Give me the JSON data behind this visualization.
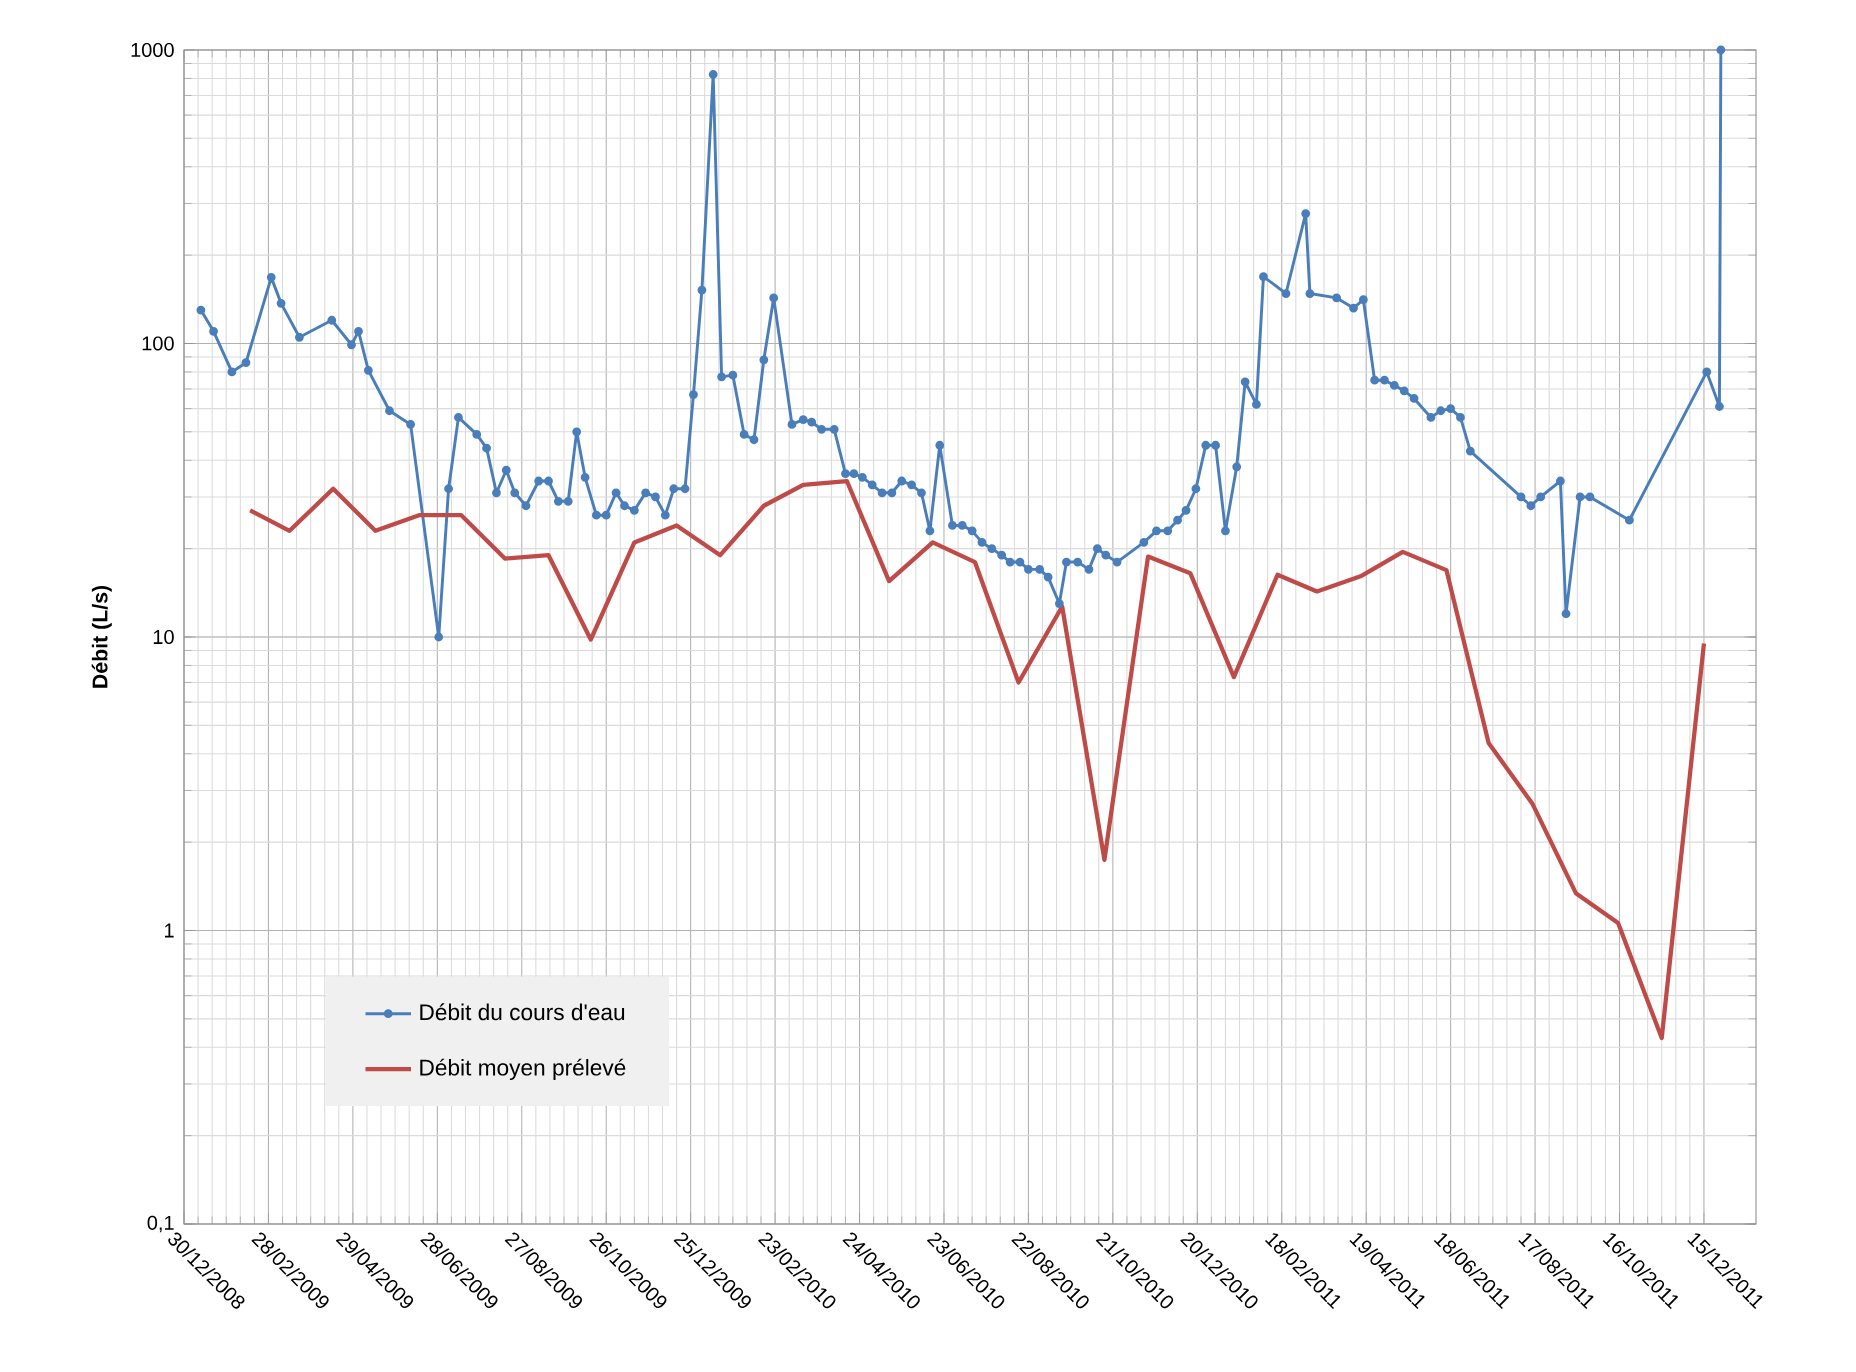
{
  "chart_data": {
    "type": "line",
    "ylabel": "Débit (L/s)",
    "log": true,
    "grid": true,
    "legend": "bottom left",
    "xlim": [
      "2008-12-30",
      "2012-01-21"
    ],
    "xticks": [
      {
        "value": "2008-12-30",
        "label": "30/12/2008"
      },
      {
        "value": "2009-02-28",
        "label": "28/02/2009"
      },
      {
        "value": "2009-04-29",
        "label": "29/04/2009"
      },
      {
        "value": "2009-06-28",
        "label": "28/06/2009"
      },
      {
        "value": "2009-08-27",
        "label": "27/08/2009"
      },
      {
        "value": "2009-10-26",
        "label": "26/10/2009"
      },
      {
        "value": "2009-12-25",
        "label": "25/12/2009"
      },
      {
        "value": "2010-02-23",
        "label": "23/02/2010"
      },
      {
        "value": "2010-04-24",
        "label": "24/04/2010"
      },
      {
        "value": "2010-06-23",
        "label": "23/06/2010"
      },
      {
        "value": "2010-08-22",
        "label": "22/08/2010"
      },
      {
        "value": "2010-10-21",
        "label": "21/10/2010"
      },
      {
        "value": "2010-12-20",
        "label": "20/12/2010"
      },
      {
        "value": "2011-02-18",
        "label": "18/02/2011"
      },
      {
        "value": "2011-04-19",
        "label": "19/04/2011"
      },
      {
        "value": "2011-06-18",
        "label": "18/06/2011"
      },
      {
        "value": "2011-08-17",
        "label": "17/08/2011"
      },
      {
        "value": "2011-10-16",
        "label": "16/10/2011"
      },
      {
        "value": "2011-12-15",
        "label": "15/12/2011"
      }
    ],
    "ylim": [
      0.1,
      1000
    ],
    "yticks": [
      {
        "value": 0.1,
        "label": "0,1"
      },
      1,
      10,
      100,
      1000
    ],
    "series": [
      {
        "name": "Débit du cours d'eau",
        "color": "#4a7ebb",
        "marker": "circle",
        "x": [
          "2009-01-11",
          "2009-01-20",
          "2009-02-02",
          "2009-02-12",
          "2009-03-02",
          "2009-03-09",
          "2009-03-22",
          "2009-04-14",
          "2009-04-28",
          "2009-05-03",
          "2009-05-10",
          "2009-05-25",
          "2009-06-09",
          "2009-06-29",
          "2009-07-06",
          "2009-07-13",
          "2009-07-26",
          "2009-08-02",
          "2009-08-09",
          "2009-08-16",
          "2009-08-22",
          "2009-08-30",
          "2009-09-08",
          "2009-09-15",
          "2009-09-22",
          "2009-09-29",
          "2009-10-05",
          "2009-10-11",
          "2009-10-19",
          "2009-10-26",
          "2009-11-02",
          "2009-11-08",
          "2009-11-15",
          "2009-11-23",
          "2009-11-30",
          "2009-12-07",
          "2009-12-13",
          "2009-12-21",
          "2009-12-27",
          "2010-01-02",
          "2010-01-10",
          "2010-01-16",
          "2010-01-24",
          "2010-02-01",
          "2010-02-08",
          "2010-02-15",
          "2010-02-22",
          "2010-03-07",
          "2010-03-15",
          "2010-03-21",
          "2010-03-28",
          "2010-04-06",
          "2010-04-14",
          "2010-04-20",
          "2010-04-26",
          "2010-05-03",
          "2010-05-10",
          "2010-05-17",
          "2010-05-24",
          "2010-05-31",
          "2010-06-07",
          "2010-06-13",
          "2010-06-20",
          "2010-06-29",
          "2010-07-06",
          "2010-07-13",
          "2010-07-20",
          "2010-07-27",
          "2010-08-03",
          "2010-08-09",
          "2010-08-16",
          "2010-08-22",
          "2010-08-30",
          "2010-09-05",
          "2010-09-13",
          "2010-09-18",
          "2010-09-26",
          "2010-10-04",
          "2010-10-10",
          "2010-10-16",
          "2010-10-24",
          "2010-11-12",
          "2010-11-21",
          "2010-11-29",
          "2010-12-06",
          "2010-12-12",
          "2010-12-19",
          "2010-12-26",
          "2011-01-02",
          "2011-01-09",
          "2011-01-17",
          "2011-01-23",
          "2011-01-31",
          "2011-02-05",
          "2011-02-21",
          "2011-03-07",
          "2011-03-10",
          "2011-03-29",
          "2011-04-10",
          "2011-04-17",
          "2011-04-25",
          "2011-05-02",
          "2011-05-09",
          "2011-05-16",
          "2011-05-23",
          "2011-06-04",
          "2011-06-11",
          "2011-06-18",
          "2011-06-25",
          "2011-07-02",
          "2011-08-07",
          "2011-08-14",
          "2011-08-21",
          "2011-09-04",
          "2011-09-08",
          "2011-09-18",
          "2011-09-25",
          "2011-10-23",
          "2011-12-17",
          "2011-12-26",
          "2011-12-27"
        ],
        "values": [
          130,
          110,
          80,
          86,
          168,
          137,
          105,
          120,
          99,
          110,
          81,
          59,
          53,
          10,
          32,
          56,
          49,
          44,
          31,
          37,
          31,
          28,
          34,
          34,
          29,
          29,
          50,
          35,
          26,
          26,
          31,
          28,
          27,
          31,
          30,
          26,
          32,
          32,
          67,
          152,
          825,
          77,
          78,
          49,
          47,
          88,
          143,
          53,
          55,
          54,
          51,
          51,
          36,
          36,
          35,
          33,
          31,
          31,
          34,
          33,
          31,
          23,
          45,
          24,
          24,
          23,
          21,
          20,
          19,
          18,
          18,
          17,
          17,
          16,
          13,
          18,
          18,
          17,
          20,
          19,
          18,
          21,
          23,
          23,
          25,
          27,
          32,
          45,
          45,
          23,
          38,
          74,
          62,
          169,
          148,
          277,
          148,
          143,
          132,
          141,
          75,
          75,
          72,
          69,
          65,
          56,
          59,
          60,
          56,
          43,
          30,
          28,
          30,
          34,
          12,
          30,
          30,
          25,
          80,
          61,
          1000
        ]
      },
      {
        "name": "Débit moyen prélevé",
        "color": "#be4b48",
        "marker": "none",
        "x": [
          "2009-02-15",
          "2009-03-15",
          "2009-04-15",
          "2009-05-15",
          "2009-06-15",
          "2009-07-15",
          "2009-08-15",
          "2009-09-15",
          "2009-10-15",
          "2009-11-15",
          "2009-12-15",
          "2010-01-15",
          "2010-02-15",
          "2010-03-15",
          "2010-04-15",
          "2010-05-15",
          "2010-06-15",
          "2010-07-15",
          "2010-08-15",
          "2010-09-15",
          "2010-10-15",
          "2010-11-15",
          "2010-12-15",
          "2011-01-15",
          "2011-02-15",
          "2011-03-15",
          "2011-04-15",
          "2011-05-15",
          "2011-06-15",
          "2011-07-15",
          "2011-08-15",
          "2011-09-15",
          "2011-10-15",
          "2011-11-15",
          "2011-12-15"
        ],
        "values": [
          27,
          23,
          32,
          23,
          26,
          26,
          18.5,
          19,
          9.8,
          21,
          24,
          19,
          28,
          33,
          34,
          15.5,
          21,
          18,
          7.0,
          12.7,
          1.74,
          18.8,
          16.5,
          7.3,
          16.3,
          14.3,
          16.1,
          19.5,
          16.9,
          4.35,
          2.71,
          1.34,
          1.06,
          0.43,
          9.5
        ]
      }
    ]
  }
}
